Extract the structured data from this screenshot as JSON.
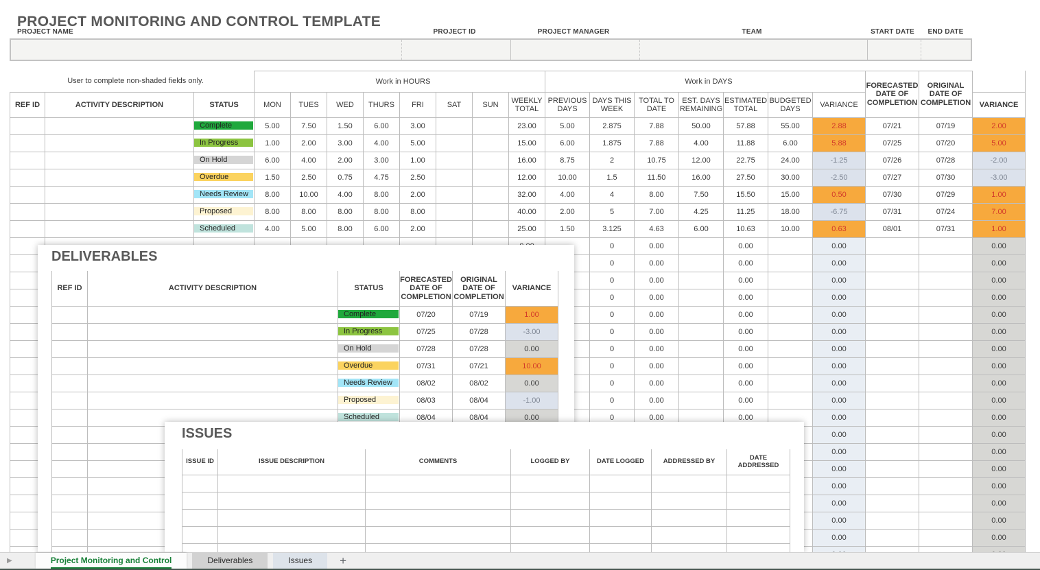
{
  "page": {
    "title": "PROJECT MONITORING AND CONTROL TEMPLATE",
    "note": "User to complete non-shaded fields only."
  },
  "project_fields": {
    "labels": [
      "PROJECT NAME",
      "PROJECT ID",
      "PROJECT MANAGER",
      "TEAM",
      "START DATE",
      "END DATE"
    ],
    "values": [
      "",
      "",
      "",
      "",
      "",
      ""
    ]
  },
  "main_table": {
    "bands": {
      "hours": "Work in HOURS",
      "days": "Work in DAYS"
    },
    "columns": [
      "REF ID",
      "ACTIVITY DESCRIPTION",
      "STATUS",
      "MON",
      "TUES",
      "WED",
      "THURS",
      "FRI",
      "SAT",
      "SUN",
      "WEEKLY TOTAL",
      "PREVIOUS DAYS",
      "DAYS THIS WEEK",
      "TOTAL TO DATE",
      "EST. DAYS REMAINING",
      "ESTIMATED TOTAL",
      "BUDGETED DAYS",
      "VARIANCE",
      "FORECASTED DATE OF COMPLETION",
      "ORIGINAL DATE OF COMPLETION",
      "VARIANCE"
    ],
    "rows": [
      {
        "ref_id": "",
        "activity": "",
        "status": "Complete",
        "hours": [
          "5.00",
          "7.50",
          "1.50",
          "6.00",
          "3.00",
          "",
          ""
        ],
        "weekly_total": "23.00",
        "previous_days": "5.00",
        "days_this_week": "2.875",
        "total_to_date": "7.88",
        "est_days_remaining": "50.00",
        "estimated_total": "57.88",
        "budgeted_days": "55.00",
        "variance_days": {
          "v": "2.88",
          "t": "pos"
        },
        "forecasted": "07/21",
        "original": "07/19",
        "variance_date": {
          "v": "2.00",
          "t": "pos"
        }
      },
      {
        "ref_id": "",
        "activity": "",
        "status": "In Progress",
        "hours": [
          "1.00",
          "2.00",
          "3.00",
          "4.00",
          "5.00",
          "",
          ""
        ],
        "weekly_total": "15.00",
        "previous_days": "6.00",
        "days_this_week": "1.875",
        "total_to_date": "7.88",
        "est_days_remaining": "4.00",
        "estimated_total": "11.88",
        "budgeted_days": "6.00",
        "variance_days": {
          "v": "5.88",
          "t": "pos"
        },
        "forecasted": "07/25",
        "original": "07/20",
        "variance_date": {
          "v": "5.00",
          "t": "pos"
        }
      },
      {
        "ref_id": "",
        "activity": "",
        "status": "On Hold",
        "hours": [
          "6.00",
          "4.00",
          "2.00",
          "3.00",
          "1.00",
          "",
          ""
        ],
        "weekly_total": "16.00",
        "previous_days": "8.75",
        "days_this_week": "2",
        "total_to_date": "10.75",
        "est_days_remaining": "12.00",
        "estimated_total": "22.75",
        "budgeted_days": "24.00",
        "variance_days": {
          "v": "-1.25",
          "t": "neg"
        },
        "forecasted": "07/26",
        "original": "07/28",
        "variance_date": {
          "v": "-2.00",
          "t": "neg"
        }
      },
      {
        "ref_id": "",
        "activity": "",
        "status": "Overdue",
        "hours": [
          "1.50",
          "2.50",
          "0.75",
          "4.75",
          "2.50",
          "",
          ""
        ],
        "weekly_total": "12.00",
        "previous_days": "10.00",
        "days_this_week": "1.5",
        "total_to_date": "11.50",
        "est_days_remaining": "16.00",
        "estimated_total": "27.50",
        "budgeted_days": "30.00",
        "variance_days": {
          "v": "-2.50",
          "t": "neg"
        },
        "forecasted": "07/27",
        "original": "07/30",
        "variance_date": {
          "v": "-3.00",
          "t": "neg"
        }
      },
      {
        "ref_id": "",
        "activity": "",
        "status": "Needs Review",
        "hours": [
          "8.00",
          "10.00",
          "4.00",
          "8.00",
          "2.00",
          "",
          ""
        ],
        "weekly_total": "32.00",
        "previous_days": "4.00",
        "days_this_week": "4",
        "total_to_date": "8.00",
        "est_days_remaining": "7.50",
        "estimated_total": "15.50",
        "budgeted_days": "15.00",
        "variance_days": {
          "v": "0.50",
          "t": "pos"
        },
        "forecasted": "07/30",
        "original": "07/29",
        "variance_date": {
          "v": "1.00",
          "t": "pos"
        }
      },
      {
        "ref_id": "",
        "activity": "",
        "status": "Proposed",
        "hours": [
          "8.00",
          "8.00",
          "8.00",
          "8.00",
          "8.00",
          "",
          ""
        ],
        "weekly_total": "40.00",
        "previous_days": "2.00",
        "days_this_week": "5",
        "total_to_date": "7.00",
        "est_days_remaining": "4.25",
        "estimated_total": "11.25",
        "budgeted_days": "18.00",
        "variance_days": {
          "v": "-6.75",
          "t": "neg"
        },
        "forecasted": "07/31",
        "original": "07/24",
        "variance_date": {
          "v": "7.00",
          "t": "pos"
        }
      },
      {
        "ref_id": "",
        "activity": "",
        "status": "Scheduled",
        "hours": [
          "4.00",
          "5.00",
          "8.00",
          "6.00",
          "2.00",
          "",
          ""
        ],
        "weekly_total": "25.00",
        "previous_days": "1.50",
        "days_this_week": "3.125",
        "total_to_date": "4.63",
        "est_days_remaining": "6.00",
        "estimated_total": "10.63",
        "budgeted_days": "10.00",
        "variance_days": {
          "v": "0.63",
          "t": "pos"
        },
        "forecasted": "08/01",
        "original": "07/31",
        "variance_date": {
          "v": "1.00",
          "t": "pos"
        }
      }
    ],
    "empty_row": {
      "ref_id": "",
      "activity": "",
      "status": "",
      "hours": [
        "",
        "",
        "",
        "",
        "",
        "",
        ""
      ],
      "weekly_total": "0.00",
      "previous_days": "",
      "days_this_week": "0",
      "total_to_date": "0.00",
      "est_days_remaining": "",
      "estimated_total": "0.00",
      "budgeted_days": "",
      "variance_days": {
        "v": "0.00",
        "t": "calc"
      },
      "forecasted": "",
      "original": "",
      "variance_date": {
        "v": "0.00",
        "t": "zero"
      }
    },
    "empty_row_count": 19
  },
  "status_colors": {
    "Complete": "#1fa83c",
    "In Progress": "#8cc440",
    "On Hold": "#d5d5d5",
    "Overdue": "#fbd35f",
    "Needs Review": "#a2e5f7",
    "Proposed": "#fdf3d2",
    "Scheduled": "#c0e3dd"
  },
  "variance_colors": {
    "pos_bg": "#f7a93d",
    "pos_text": "#d33a2a",
    "neg_bg": "#dce2ec",
    "neg_text": "#7e8693",
    "zero_bg": "#d7d7d4",
    "calc_bg": "#e9eef4",
    "calc_text": "#3b3b3b"
  },
  "deliverables": {
    "title": "DELIVERABLES",
    "columns": [
      "REF ID",
      "ACTIVITY DESCRIPTION",
      "STATUS",
      "FORECASTED DATE OF COMPLETION",
      "ORIGINAL DATE OF COMPLETION",
      "VARIANCE"
    ],
    "rows": [
      {
        "ref_id": "",
        "activity": "",
        "status": "Complete",
        "forecasted": "07/20",
        "original": "07/19",
        "variance": {
          "v": "1.00",
          "t": "pos"
        }
      },
      {
        "ref_id": "",
        "activity": "",
        "status": "In Progress",
        "forecasted": "07/25",
        "original": "07/28",
        "variance": {
          "v": "-3.00",
          "t": "neg"
        }
      },
      {
        "ref_id": "",
        "activity": "",
        "status": "On Hold",
        "forecasted": "07/28",
        "original": "07/28",
        "variance": {
          "v": "0.00",
          "t": "zero"
        }
      },
      {
        "ref_id": "",
        "activity": "",
        "status": "Overdue",
        "forecasted": "07/31",
        "original": "07/21",
        "variance": {
          "v": "10.00",
          "t": "pos"
        }
      },
      {
        "ref_id": "",
        "activity": "",
        "status": "Needs Review",
        "forecasted": "08/02",
        "original": "08/02",
        "variance": {
          "v": "0.00",
          "t": "zero"
        }
      },
      {
        "ref_id": "",
        "activity": "",
        "status": "Proposed",
        "forecasted": "08/03",
        "original": "08/04",
        "variance": {
          "v": "-1.00",
          "t": "neg"
        }
      },
      {
        "ref_id": "",
        "activity": "",
        "status": "Scheduled",
        "forecasted": "08/04",
        "original": "08/04",
        "variance": {
          "v": "0.00",
          "t": "zero"
        }
      }
    ],
    "empty_row_count": 8
  },
  "issues": {
    "title": "ISSUES",
    "columns": [
      "ISSUE ID",
      "ISSUE DESCRIPTION",
      "COMMENTS",
      "LOGGED BY",
      "DATE LOGGED",
      "ADDRESSED BY",
      "DATE ADDRESSED"
    ],
    "empty_row_count": 5
  },
  "tabs": {
    "nav_arrow": "▶",
    "active_color": "#188038",
    "items": [
      {
        "label": "Project Monitoring and Control",
        "active": true
      },
      {
        "label": "Deliverables",
        "active": false
      },
      {
        "label": "Issues",
        "active": false
      }
    ],
    "add_label": "+"
  }
}
